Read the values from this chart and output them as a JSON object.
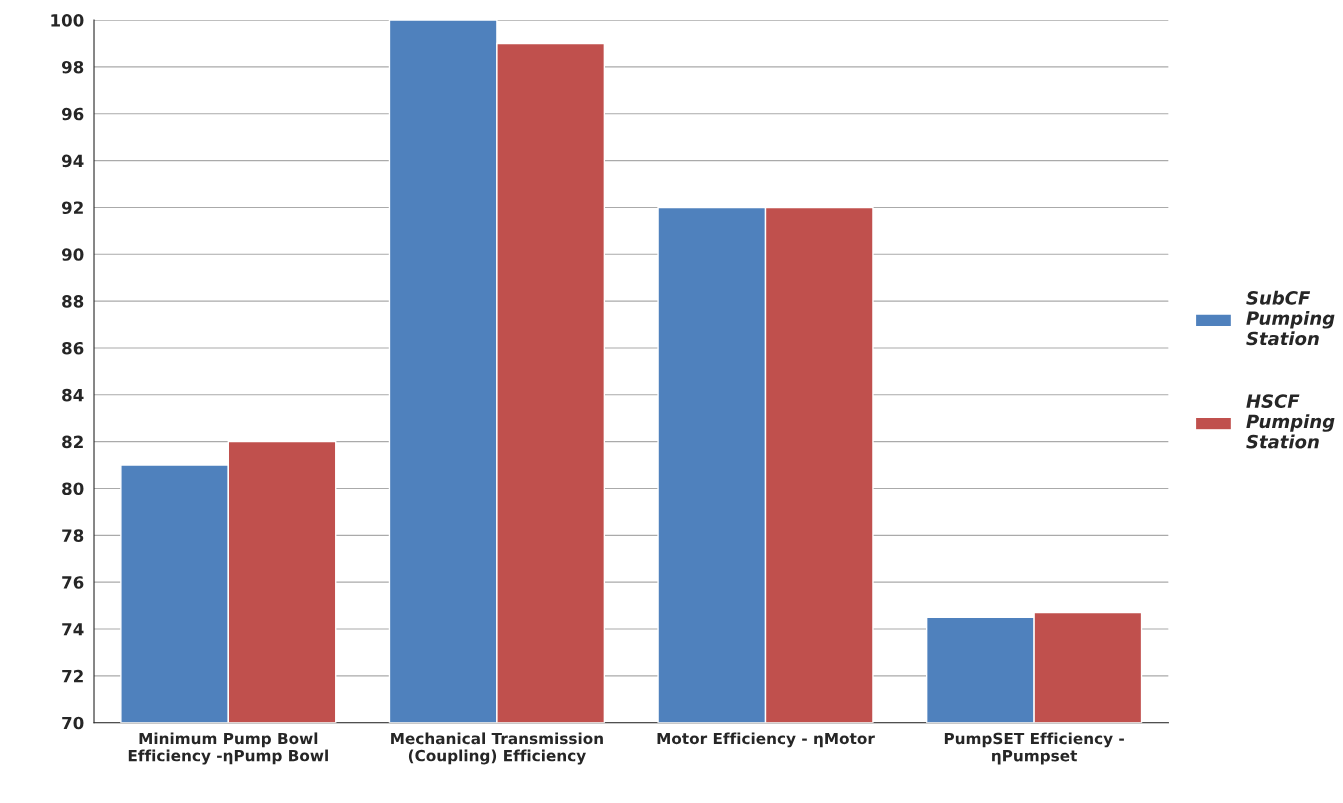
{
  "chart_data": {
    "type": "bar",
    "categories": [
      "Minimum Pump Bowl\nEfficiency -ηPump Bowl",
      "Mechanical Transmission\n(Coupling) Efficiency",
      "Motor Efficiency - ηMotor",
      "PumpSET Efficiency -\nηPumpset"
    ],
    "series": [
      {
        "name": "SubCF\nPumping\nStation",
        "color": "#4f81bd",
        "values": [
          81,
          100,
          92,
          74.5
        ]
      },
      {
        "name": "HSCF\nPumping\nStation",
        "color": "#c0504d",
        "values": [
          82,
          99,
          92,
          74.7
        ]
      }
    ],
    "ylim": [
      70,
      100
    ],
    "yticks": [
      70,
      72,
      74,
      76,
      78,
      80,
      82,
      84,
      86,
      88,
      90,
      92,
      94,
      96,
      98,
      100
    ],
    "grid": "y",
    "legend": "right"
  }
}
